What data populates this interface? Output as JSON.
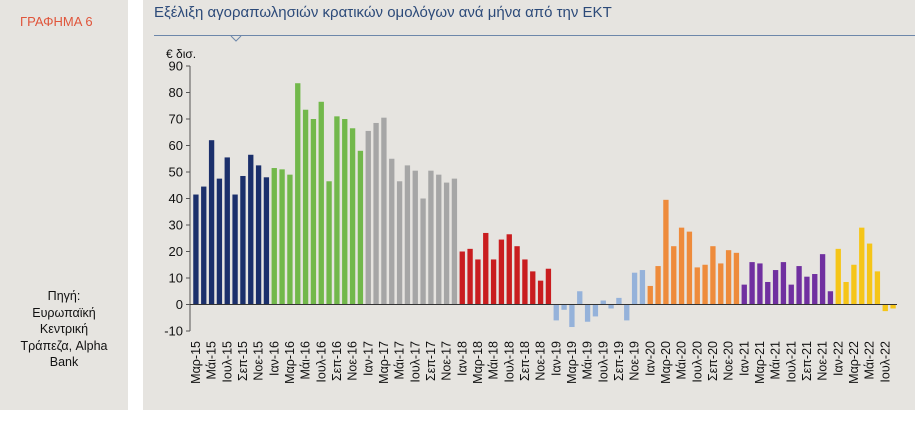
{
  "figure": {
    "label": "ΓΡΑΦΗΜΑ 6",
    "title": "Εξέλιξη αγοραπωλησιών κρατικών ομολόγων ανά μήνα από την ΕΚΤ",
    "source_lines": [
      "Πηγή:",
      "Ευρωπαϊκή",
      "Κεντρική",
      "Τράπεζα, Alpha",
      "Bank"
    ]
  },
  "colors": {
    "2015": "#1b2f6b",
    "2016": "#72b84b",
    "2017": "#a6a6a6",
    "2018": "#c91d1f",
    "2019": "#95b2da",
    "2020": "#ee8b3b",
    "2021": "#7030a0",
    "2022": "#f5c518",
    "title": "#2c4a79",
    "label": "#e0553b"
  },
  "chart_data": {
    "type": "bar",
    "unit_label": "€ δισ.",
    "ylim": [
      -10,
      90
    ],
    "yticks": [
      -10,
      0,
      10,
      20,
      30,
      40,
      50,
      60,
      70,
      80,
      90
    ],
    "grid": false,
    "xtick_labels": [
      "Μαρ-15",
      "Μάι-15",
      "Ιουλ-15",
      "Σεπ-15",
      "Νοε-15",
      "Ιαν-16",
      "Μαρ-16",
      "Μάι-16",
      "Ιουλ-16",
      "Σεπ-16",
      "Νοε-16",
      "Ιαν-17",
      "Μαρ-17",
      "Μάι-17",
      "Ιουλ-17",
      "Σεπ-17",
      "Νοε-17",
      "Ιαν-18",
      "Μαρ-18",
      "Μάι-18",
      "Ιουλ-18",
      "Σεπ-18",
      "Νοε-18",
      "Ιαν-19",
      "Μαρ-19",
      "Μάι-19",
      "Ιουλ-19",
      "Σεπ-19",
      "Νοε-19",
      "Ιαν-20",
      "Μαρ-20",
      "Μάι-20",
      "Ιουλ-20",
      "Σεπ-20",
      "Νοε-20",
      "Ιαν-21",
      "Μαρ-21",
      "Μάι-21",
      "Ιουλ-21",
      "Σεπ-21",
      "Νοε-21",
      "Ιαν-22",
      "Μαρ-22",
      "Μάι-22",
      "Ιουλ-22"
    ],
    "groups": [
      {
        "year": "2015",
        "values": [
          41.5,
          44.5,
          62,
          47.5,
          55.5,
          41.5,
          48.5,
          56.5,
          52.5,
          48
        ]
      },
      {
        "year": "2016",
        "values": [
          51.5,
          51,
          49,
          83.5,
          73.5,
          70,
          76.5,
          46.5,
          71,
          70,
          66.5,
          58
        ]
      },
      {
        "year": "2017",
        "values": [
          65.5,
          68.5,
          70.5,
          55,
          46.5,
          52.5,
          50.5,
          40,
          50.5,
          49,
          46,
          47.5
        ]
      },
      {
        "year": "2018",
        "values": [
          20,
          21,
          17,
          27,
          17,
          24.5,
          26.5,
          22,
          17,
          12.5,
          9,
          13.5
        ]
      },
      {
        "year": "2019",
        "values": [
          -6,
          -2,
          -8.5,
          5,
          -6.5,
          -4.5,
          1.5,
          -1.5,
          2.5,
          -6,
          12,
          13
        ]
      },
      {
        "year": "2020",
        "values": [
          7,
          14.5,
          39.5,
          22,
          29,
          27.5,
          14,
          15,
          22,
          15.5,
          20.5,
          19.5
        ]
      },
      {
        "year": "2021",
        "values": [
          7.5,
          16,
          15.5,
          8.5,
          13,
          16,
          7.5,
          14.5,
          10.5,
          11.5,
          19,
          5
        ]
      },
      {
        "year": "2022",
        "values": [
          21,
          8.5,
          15,
          29,
          23,
          12.5,
          -2.5,
          -1.5
        ]
      }
    ]
  }
}
